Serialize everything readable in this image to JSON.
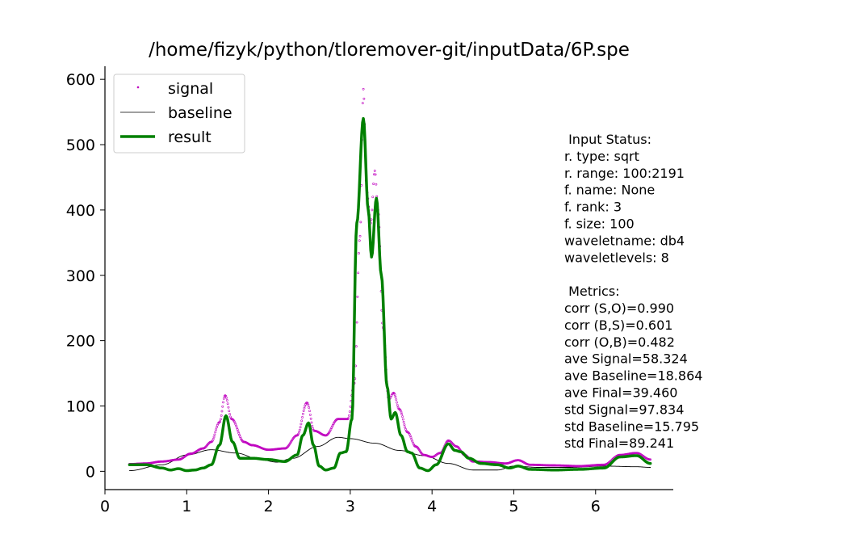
{
  "chart_data": {
    "type": "line",
    "title": "/home/fizyk/python/tloremover-git/inputData/6P.spe",
    "xlabel": "",
    "ylabel": "",
    "xlim": [
      0,
      6.95
    ],
    "ylim": [
      -28,
      620
    ],
    "xticks": [
      "0",
      "1",
      "2",
      "3",
      "4",
      "5",
      "6"
    ],
    "yticks": [
      "0",
      "100",
      "200",
      "300",
      "400",
      "500",
      "600"
    ],
    "grid": false,
    "legend": {
      "placement": "top-left",
      "entries": [
        "signal",
        "baseline",
        "result"
      ]
    },
    "colors": {
      "signal": "#bf00bf",
      "baseline": "#000000",
      "result": "#008000"
    },
    "series": [
      {
        "name": "signal",
        "style": "dots",
        "x": [
          0.3,
          0.5,
          0.7,
          0.9,
          1.05,
          1.2,
          1.3,
          1.4,
          1.47,
          1.55,
          1.7,
          1.8,
          2.0,
          2.2,
          2.35,
          2.47,
          2.56,
          2.7,
          2.85,
          2.97,
          3.05,
          3.12,
          3.16,
          3.2,
          3.25,
          3.3,
          3.34,
          3.4,
          3.47,
          3.53,
          3.6,
          3.7,
          3.8,
          3.9,
          4.0,
          4.1,
          4.2,
          4.3,
          4.4,
          4.5,
          4.7,
          4.9,
          5.05,
          5.2,
          5.5,
          5.8,
          6.1,
          6.3,
          6.5,
          6.67
        ],
        "y": [
          11,
          12,
          15,
          18,
          27,
          35,
          45,
          75,
          116,
          80,
          45,
          40,
          33,
          35,
          55,
          105,
          62,
          55,
          80,
          80,
          135,
          360,
          585,
          430,
          380,
          460,
          400,
          220,
          110,
          120,
          95,
          60,
          38,
          25,
          22,
          28,
          47,
          38,
          25,
          15,
          14,
          12,
          17,
          10,
          9,
          8,
          10,
          25,
          28,
          18
        ]
      },
      {
        "name": "baseline",
        "style": "thin-line",
        "x": [
          0.3,
          0.7,
          1.0,
          1.3,
          1.6,
          1.9,
          2.1,
          2.3,
          2.6,
          2.85,
          3.0,
          3.3,
          3.6,
          3.9,
          4.2,
          4.5,
          4.8,
          5.0,
          5.3,
          5.7,
          6.1,
          6.5,
          6.67
        ],
        "y": [
          1,
          10,
          25,
          33,
          28,
          18,
          14,
          20,
          38,
          52,
          50,
          43,
          32,
          24,
          12,
          2,
          2,
          8,
          6,
          6,
          8,
          7,
          6
        ]
      },
      {
        "name": "result",
        "style": "thick-line",
        "x": [
          0.3,
          0.5,
          0.7,
          0.8,
          0.9,
          1.0,
          1.1,
          1.2,
          1.3,
          1.4,
          1.48,
          1.56,
          1.65,
          1.8,
          2.0,
          2.2,
          2.35,
          2.42,
          2.49,
          2.55,
          2.62,
          2.7,
          2.8,
          2.88,
          2.95,
          3.02,
          3.08,
          3.16,
          3.22,
          3.26,
          3.32,
          3.38,
          3.45,
          3.5,
          3.55,
          3.62,
          3.7,
          3.75,
          3.85,
          3.95,
          4.05,
          4.2,
          4.28,
          4.35,
          4.45,
          4.6,
          4.8,
          4.95,
          5.05,
          5.2,
          5.5,
          5.8,
          6.1,
          6.3,
          6.5,
          6.67
        ],
        "y": [
          10,
          10,
          5,
          2,
          4,
          1,
          2,
          5,
          10,
          40,
          85,
          45,
          20,
          20,
          18,
          15,
          25,
          55,
          74,
          40,
          8,
          2,
          5,
          28,
          30,
          80,
          380,
          540,
          400,
          328,
          418,
          300,
          130,
          80,
          90,
          55,
          30,
          28,
          5,
          1,
          10,
          42,
          32,
          30,
          20,
          12,
          10,
          5,
          8,
          3,
          2,
          3,
          5,
          22,
          24,
          12
        ]
      }
    ]
  },
  "status_panel": {
    "input_header": " Input Status:",
    "input_lines": [
      "r. type: sqrt",
      "r. range: 100:2191",
      "f. name: None",
      "f. rank: 3",
      "f. size: 100",
      "waveletname: db4",
      "waveletlevels: 8"
    ],
    "metrics_header": " Metrics:",
    "metrics_lines": [
      "corr (S,O)=0.990",
      "corr (B,S)=0.601",
      "corr (O,B)=0.482",
      "ave Signal=58.324",
      "ave Baseline=18.864",
      "ave Final=39.460",
      "std Signal=97.834",
      "std Baseline=15.795",
      "std Final=89.241"
    ]
  }
}
